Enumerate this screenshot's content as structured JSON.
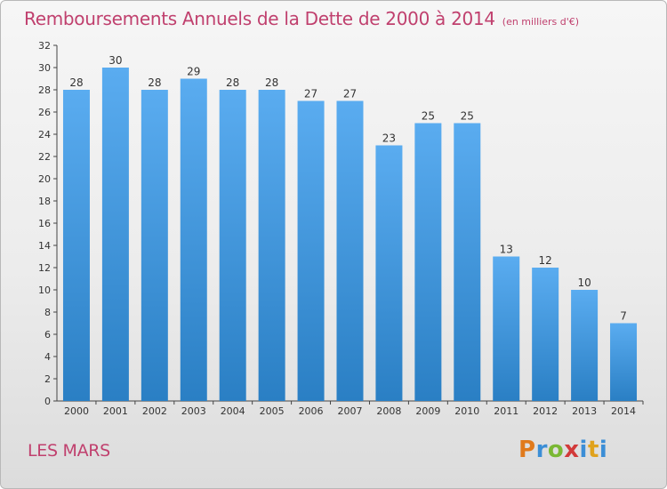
{
  "header": {
    "title": "Remboursements Annuels de la Dette de 2000 à 2014",
    "subtitle": "(en milliers d'€)"
  },
  "commune": "LES MARS",
  "logo": {
    "text": "Proxiti"
  },
  "colors": {
    "title": "#c0406e",
    "bar_top": "#5aacf0",
    "bar_bottom": "#2a7fc4",
    "axis": "#444444"
  },
  "chart_data": {
    "type": "bar",
    "title": "Remboursements Annuels de la Dette de 2000 à 2014",
    "xlabel": "",
    "ylabel": "",
    "categories": [
      "2000",
      "2001",
      "2002",
      "2003",
      "2004",
      "2005",
      "2006",
      "2007",
      "2008",
      "2009",
      "2010",
      "2011",
      "2012",
      "2013",
      "2014"
    ],
    "values": [
      28,
      30,
      28,
      29,
      28,
      28,
      27,
      27,
      23,
      25,
      25,
      13,
      12,
      10,
      7
    ],
    "ylim": [
      0,
      32
    ],
    "yticks": [
      0,
      2,
      4,
      6,
      8,
      10,
      12,
      14,
      16,
      18,
      20,
      22,
      24,
      26,
      28,
      30,
      32
    ],
    "grid": false,
    "data_labels": true
  }
}
